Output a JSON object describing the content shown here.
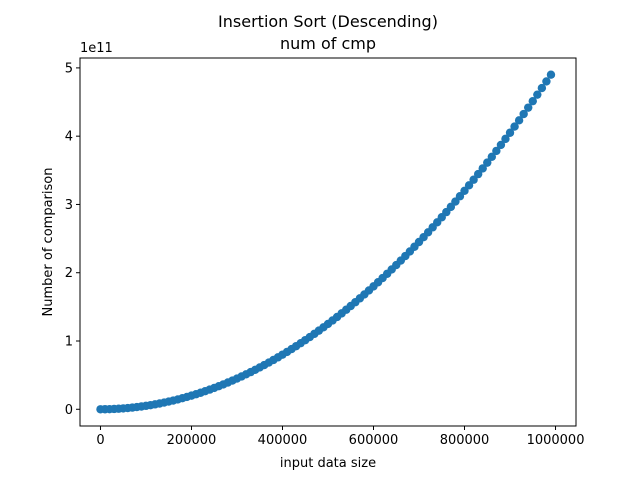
{
  "chart_data": {
    "type": "scatter",
    "title": "Insertion Sort (Descending)",
    "subtitle": "num of cmp",
    "xlabel": "input data size",
    "ylabel": "Number of comparison",
    "y_offset_label": "1e11",
    "xlim": [
      -45000,
      1045000
    ],
    "ylim": [
      -0.245,
      5.145
    ],
    "x_ticks": [
      0,
      200000,
      400000,
      600000,
      800000,
      1000000
    ],
    "x_tick_labels": [
      "0",
      "200000",
      "400000",
      "600000",
      "800000",
      "1000000"
    ],
    "y_ticks": [
      0,
      1,
      2,
      3,
      4,
      5
    ],
    "y_tick_labels": [
      "0",
      "1",
      "2",
      "3",
      "4",
      "5"
    ],
    "grid": false,
    "legend": "none",
    "marker_color": "#1f77b4",
    "series": [
      {
        "x_start": 0,
        "x_step": 10000,
        "count": 100,
        "y_unit": "1e11 comparisons",
        "model": "y = n*(n-1)/2",
        "x": [
          0,
          10000,
          20000,
          30000,
          40000,
          50000,
          60000,
          70000,
          80000,
          90000,
          100000,
          110000,
          120000,
          130000,
          140000,
          150000,
          160000,
          170000,
          180000,
          190000,
          200000,
          210000,
          220000,
          230000,
          240000,
          250000,
          260000,
          270000,
          280000,
          290000,
          300000,
          310000,
          320000,
          330000,
          340000,
          350000,
          360000,
          370000,
          380000,
          390000,
          400000,
          410000,
          420000,
          430000,
          440000,
          450000,
          460000,
          470000,
          480000,
          490000,
          500000,
          510000,
          520000,
          530000,
          540000,
          550000,
          560000,
          570000,
          580000,
          590000,
          600000,
          610000,
          620000,
          630000,
          640000,
          650000,
          660000,
          670000,
          680000,
          690000,
          700000,
          710000,
          720000,
          730000,
          740000,
          750000,
          760000,
          770000,
          780000,
          790000,
          800000,
          810000,
          820000,
          830000,
          840000,
          850000,
          860000,
          870000,
          880000,
          890000,
          900000,
          910000,
          920000,
          930000,
          940000,
          950000,
          960000,
          970000,
          980000,
          990000
        ],
        "y": [
          0,
          0.0005,
          0.002,
          0.0045,
          0.008,
          0.0125,
          0.018,
          0.0245,
          0.032,
          0.0405,
          0.05,
          0.0605,
          0.072,
          0.0845,
          0.098,
          0.1125,
          0.128,
          0.1445,
          0.162,
          0.1805,
          0.2,
          0.2205,
          0.242,
          0.2645,
          0.288,
          0.3125,
          0.338,
          0.3645,
          0.392,
          0.4205,
          0.45,
          0.4805,
          0.512,
          0.5445,
          0.578,
          0.6125,
          0.648,
          0.6845,
          0.722,
          0.7605,
          0.8,
          0.8405,
          0.882,
          0.9245,
          0.968,
          1.0125,
          1.058,
          1.1045,
          1.152,
          1.2005,
          1.25,
          1.3005,
          1.352,
          1.4045,
          1.458,
          1.5125,
          1.568,
          1.6245,
          1.682,
          1.7405,
          1.8,
          1.8605,
          1.922,
          1.9845,
          2.048,
          2.1125,
          2.178,
          2.2445,
          2.312,
          2.3805,
          2.45,
          2.5205,
          2.592,
          2.6645,
          2.738,
          2.8125,
          2.888,
          2.9645,
          3.042,
          3.1205,
          3.2,
          3.2805,
          3.362,
          3.4445,
          3.528,
          3.6125,
          3.698,
          3.7845,
          3.872,
          3.9605,
          4.05,
          4.1405,
          4.232,
          4.3245,
          4.418,
          4.5125,
          4.608,
          4.7045,
          4.802,
          4.9005
        ]
      }
    ]
  }
}
